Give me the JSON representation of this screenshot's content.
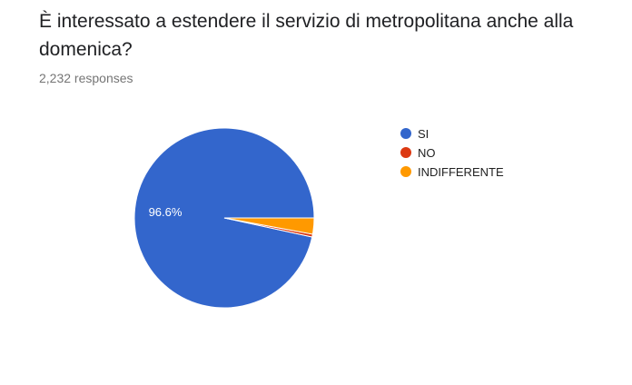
{
  "question": {
    "title": "È interessato a estendere il servizio di metropolitana anche alla domenica?",
    "responses": "2,232 responses"
  },
  "chart_data": {
    "type": "pie",
    "categories": [
      "SI",
      "NO",
      "INDIFFERENTE"
    ],
    "values": [
      96.6,
      0.5,
      2.9
    ],
    "colors": [
      "#3366cc",
      "#dc3912",
      "#ff9900"
    ],
    "data_labels": [
      "96.6%",
      "",
      ""
    ],
    "legend_position": "right"
  }
}
